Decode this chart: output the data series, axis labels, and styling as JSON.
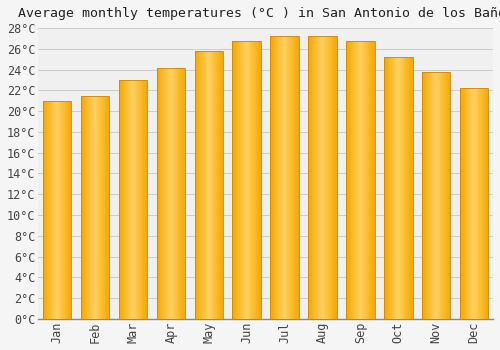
{
  "title": "Average monthly temperatures (°C ) in San Antonio de los Baños",
  "months": [
    "Jan",
    "Feb",
    "Mar",
    "Apr",
    "May",
    "Jun",
    "Jul",
    "Aug",
    "Sep",
    "Oct",
    "Nov",
    "Dec"
  ],
  "temperatures": [
    21.0,
    21.5,
    23.0,
    24.2,
    25.8,
    26.8,
    27.2,
    27.2,
    26.8,
    25.2,
    23.8,
    22.2
  ],
  "bar_color_center": "#FFD060",
  "bar_color_edge": "#F5A800",
  "bar_border_color": "#C8870A",
  "background_color": "#f5f5f5",
  "plot_bg_color": "#f0f0f0",
  "grid_color": "#cccccc",
  "tick_label_color": "#444444",
  "title_color": "#222222",
  "ylim": [
    0,
    28
  ],
  "ytick_step": 2,
  "title_fontsize": 9.5,
  "tick_fontsize": 8.5,
  "bar_width": 0.75
}
